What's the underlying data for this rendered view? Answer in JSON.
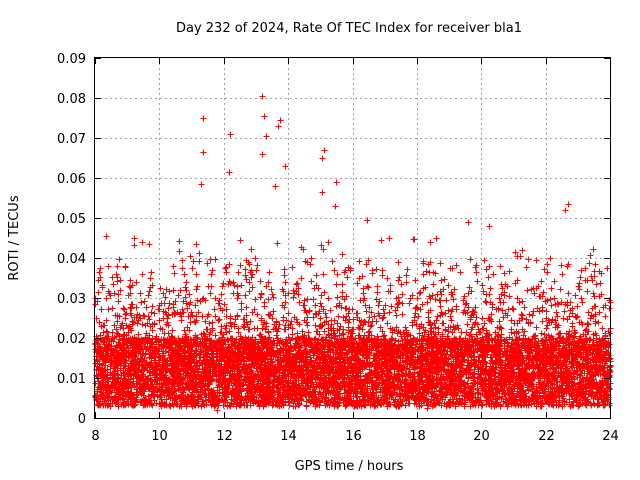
{
  "chart_data": {
    "type": "scatter",
    "title": "Day 232 of 2024, Rate Of TEC Index for receiver bla1",
    "xlabel": "GPS time / hours",
    "ylabel": "ROTI / TECUs",
    "xlim": [
      8,
      24
    ],
    "ylim": [
      0,
      0.09
    ],
    "x_ticks": [
      8,
      10,
      12,
      14,
      16,
      18,
      20,
      22,
      24
    ],
    "x_tick_labels": [
      "8",
      "10",
      "12",
      "14",
      "16",
      "18",
      "20",
      "22",
      "24"
    ],
    "y_ticks": [
      0,
      0.01,
      0.02,
      0.03,
      0.04,
      0.05,
      0.06,
      0.07,
      0.08,
      0.09
    ],
    "y_tick_labels": [
      "0",
      "0.01",
      "0.02",
      "0.03",
      "0.04",
      "0.05",
      "0.06",
      "0.07",
      "0.08",
      "0.09"
    ],
    "grid": true,
    "marker": "+",
    "marker_color": "#ff0000",
    "series": [
      {
        "name": "ROTI",
        "point_count_approx": 9000,
        "typical_range": [
          0.003,
          0.02
        ],
        "notable_points": [
          {
            "x": 8.35,
            "y": 0.0455
          },
          {
            "x": 9.2,
            "y": 0.045
          },
          {
            "x": 9.45,
            "y": 0.044
          },
          {
            "x": 11.35,
            "y": 0.075
          },
          {
            "x": 11.35,
            "y": 0.0665
          },
          {
            "x": 11.3,
            "y": 0.0585
          },
          {
            "x": 12.2,
            "y": 0.071
          },
          {
            "x": 12.15,
            "y": 0.0615
          },
          {
            "x": 13.2,
            "y": 0.0805
          },
          {
            "x": 13.25,
            "y": 0.0755
          },
          {
            "x": 13.3,
            "y": 0.0705
          },
          {
            "x": 13.2,
            "y": 0.066
          },
          {
            "x": 13.75,
            "y": 0.0745
          },
          {
            "x": 13.7,
            "y": 0.073
          },
          {
            "x": 13.9,
            "y": 0.063
          },
          {
            "x": 13.6,
            "y": 0.058
          },
          {
            "x": 15.1,
            "y": 0.067
          },
          {
            "x": 15.05,
            "y": 0.065
          },
          {
            "x": 15.05,
            "y": 0.0565
          },
          {
            "x": 15.5,
            "y": 0.059
          },
          {
            "x": 15.45,
            "y": 0.053
          },
          {
            "x": 16.45,
            "y": 0.0495
          },
          {
            "x": 19.6,
            "y": 0.049
          },
          {
            "x": 20.25,
            "y": 0.048
          },
          {
            "x": 22.7,
            "y": 0.0535
          },
          {
            "x": 22.6,
            "y": 0.052
          },
          {
            "x": 18.3,
            "y": 0.0025
          },
          {
            "x": 11.8,
            "y": 0.002
          }
        ]
      }
    ]
  }
}
